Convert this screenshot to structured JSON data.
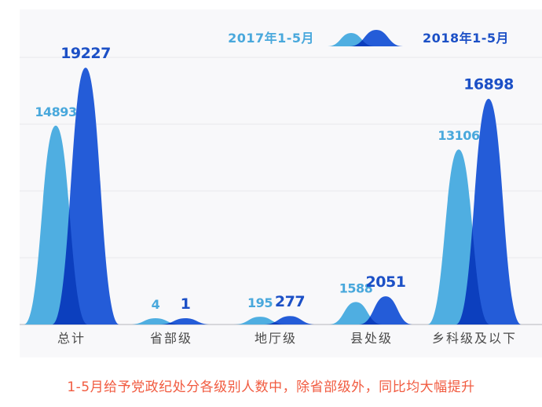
{
  "legend": {
    "left_label": "2017年1-5月",
    "right_label": "2018年1-5月"
  },
  "caption": "1-5月给予党政纪处分各级别人数中，除省部级外，同比均大幅提升",
  "colors": {
    "series_2017": "#4FAEE1",
    "series_2018": "#245CD8",
    "label_2017": "#49A8DC",
    "label_2018": "#1C50C6",
    "caption": "#F15B40",
    "axis_label": "#4A4A4A",
    "gridline": "#E8E8EC",
    "axis_line": "#D7D7DB",
    "panel_bg": "#F8F8FA"
  },
  "chart_data": {
    "type": "area",
    "title": "",
    "categories": [
      "总计",
      "省部级",
      "地厅级",
      "县处级",
      "乡科级及以下"
    ],
    "series": [
      {
        "name": "2017年1-5月",
        "color": "#4FAEE1",
        "values": [
          14893,
          4,
          195,
          1588,
          13106
        ]
      },
      {
        "name": "2018年1-5月",
        "color": "#245CD8",
        "values": [
          19227,
          1,
          277,
          2051,
          16898
        ]
      }
    ],
    "xlabel": "",
    "ylabel": "",
    "ylim": [
      0,
      20000
    ],
    "gridline_step": 5000,
    "grid": true,
    "legend_position": "top-right",
    "value_labels": true
  }
}
